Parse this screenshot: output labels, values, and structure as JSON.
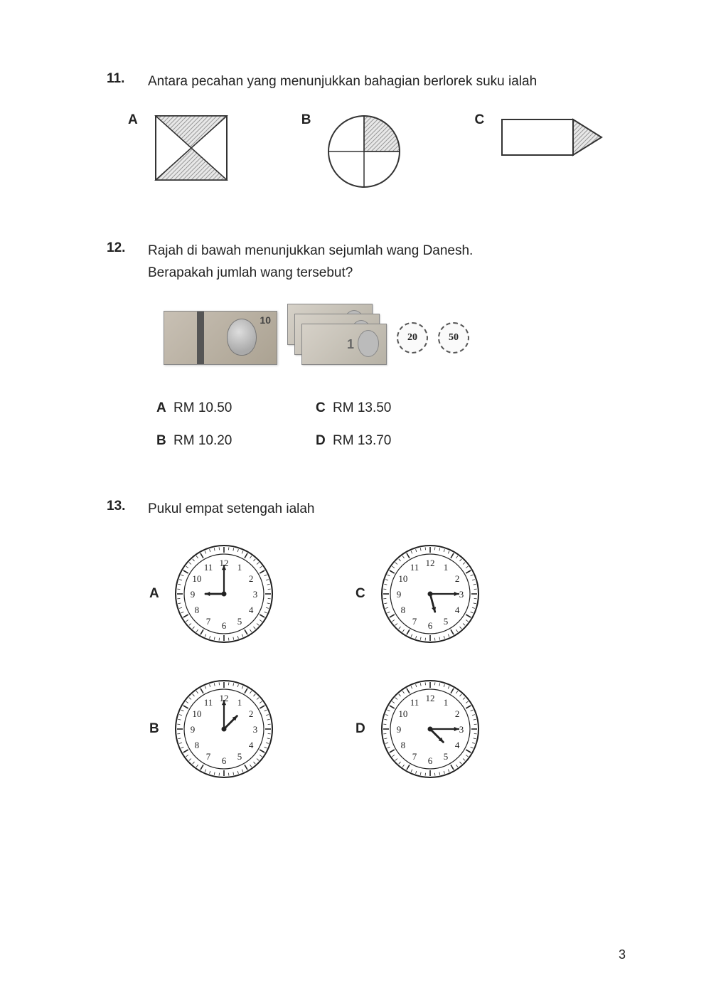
{
  "page_number": "3",
  "colors": {
    "text": "#222222",
    "stroke": "#333333",
    "hatch": "#888888",
    "bg": "#ffffff"
  },
  "q11": {
    "number": "11.",
    "text": "Antara pecahan yang menunjukkan bahagian berlorek suku ialah",
    "options": {
      "a": {
        "label": "A",
        "shape": "square-x",
        "shaded": [
          "top",
          "bottom"
        ]
      },
      "b": {
        "label": "B",
        "shape": "circle-quarters",
        "shaded": [
          "q1"
        ]
      },
      "c": {
        "label": "C",
        "shape": "rect-triangle",
        "shaded": [
          "triangle"
        ]
      }
    }
  },
  "q12": {
    "number": "12.",
    "line1": "Rajah di bawah menunjukkan sejumlah wang Danesh.",
    "line2": "Berapakah jumlah wang tersebut?",
    "money": {
      "note10_count": 1,
      "note1_count": 3,
      "coins": [
        "20",
        "50"
      ]
    },
    "options": [
      {
        "label": "A",
        "value": "RM 10.50"
      },
      {
        "label": "B",
        "value": "RM 10.20"
      },
      {
        "label": "C",
        "value": "RM 13.50"
      },
      {
        "label": "D",
        "value": "RM 13.70"
      }
    ]
  },
  "q13": {
    "number": "13.",
    "text": "Pukul empat setengah ialah",
    "options": [
      {
        "label": "A",
        "hour_angle": -90,
        "minute_angle": 0
      },
      {
        "label": "B",
        "hour_angle": 45,
        "minute_angle": 0
      },
      {
        "label": "C",
        "hour_angle": 165,
        "minute_angle": 90
      },
      {
        "label": "D",
        "hour_angle": 135,
        "minute_angle": 90
      }
    ],
    "clock_numbers": [
      "12",
      "1",
      "2",
      "3",
      "4",
      "5",
      "6",
      "7",
      "8",
      "9",
      "10",
      "11"
    ]
  }
}
